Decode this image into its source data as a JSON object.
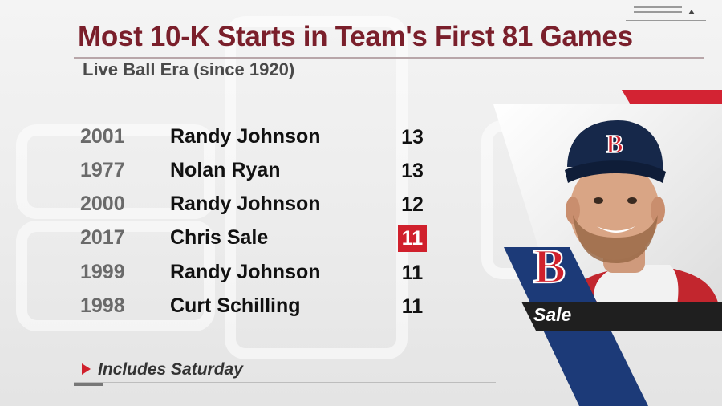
{
  "header": {
    "title": "Most 10-K Starts in Team's First 81 Games",
    "subtitle": "Live Ball Era (since 1920)"
  },
  "rows": [
    {
      "year": "2001",
      "player": "Randy Johnson",
      "count": "13",
      "highlight": false
    },
    {
      "year": "1977",
      "player": "Nolan Ryan",
      "count": "13",
      "highlight": false
    },
    {
      "year": "2000",
      "player": "Randy Johnson",
      "count": "12",
      "highlight": false
    },
    {
      "year": "2017",
      "player": "Chris Sale",
      "count": "11",
      "highlight": true
    },
    {
      "year": "1999",
      "player": "Randy Johnson",
      "count": "11",
      "highlight": false
    },
    {
      "year": "1998",
      "player": "Curt Schilling",
      "count": "11",
      "highlight": false
    }
  ],
  "footnote": "Includes Saturday",
  "player_panel": {
    "name": "Sale",
    "team_logo": "B",
    "cap_logo": "B"
  },
  "colors": {
    "title": "#7a1f2b",
    "highlight": "#d0202c",
    "navy": "#1c3a78",
    "red": "#d0202c"
  },
  "icons": [
    "boston-red-sox-b-logo",
    "red-triangle-bullet"
  ]
}
